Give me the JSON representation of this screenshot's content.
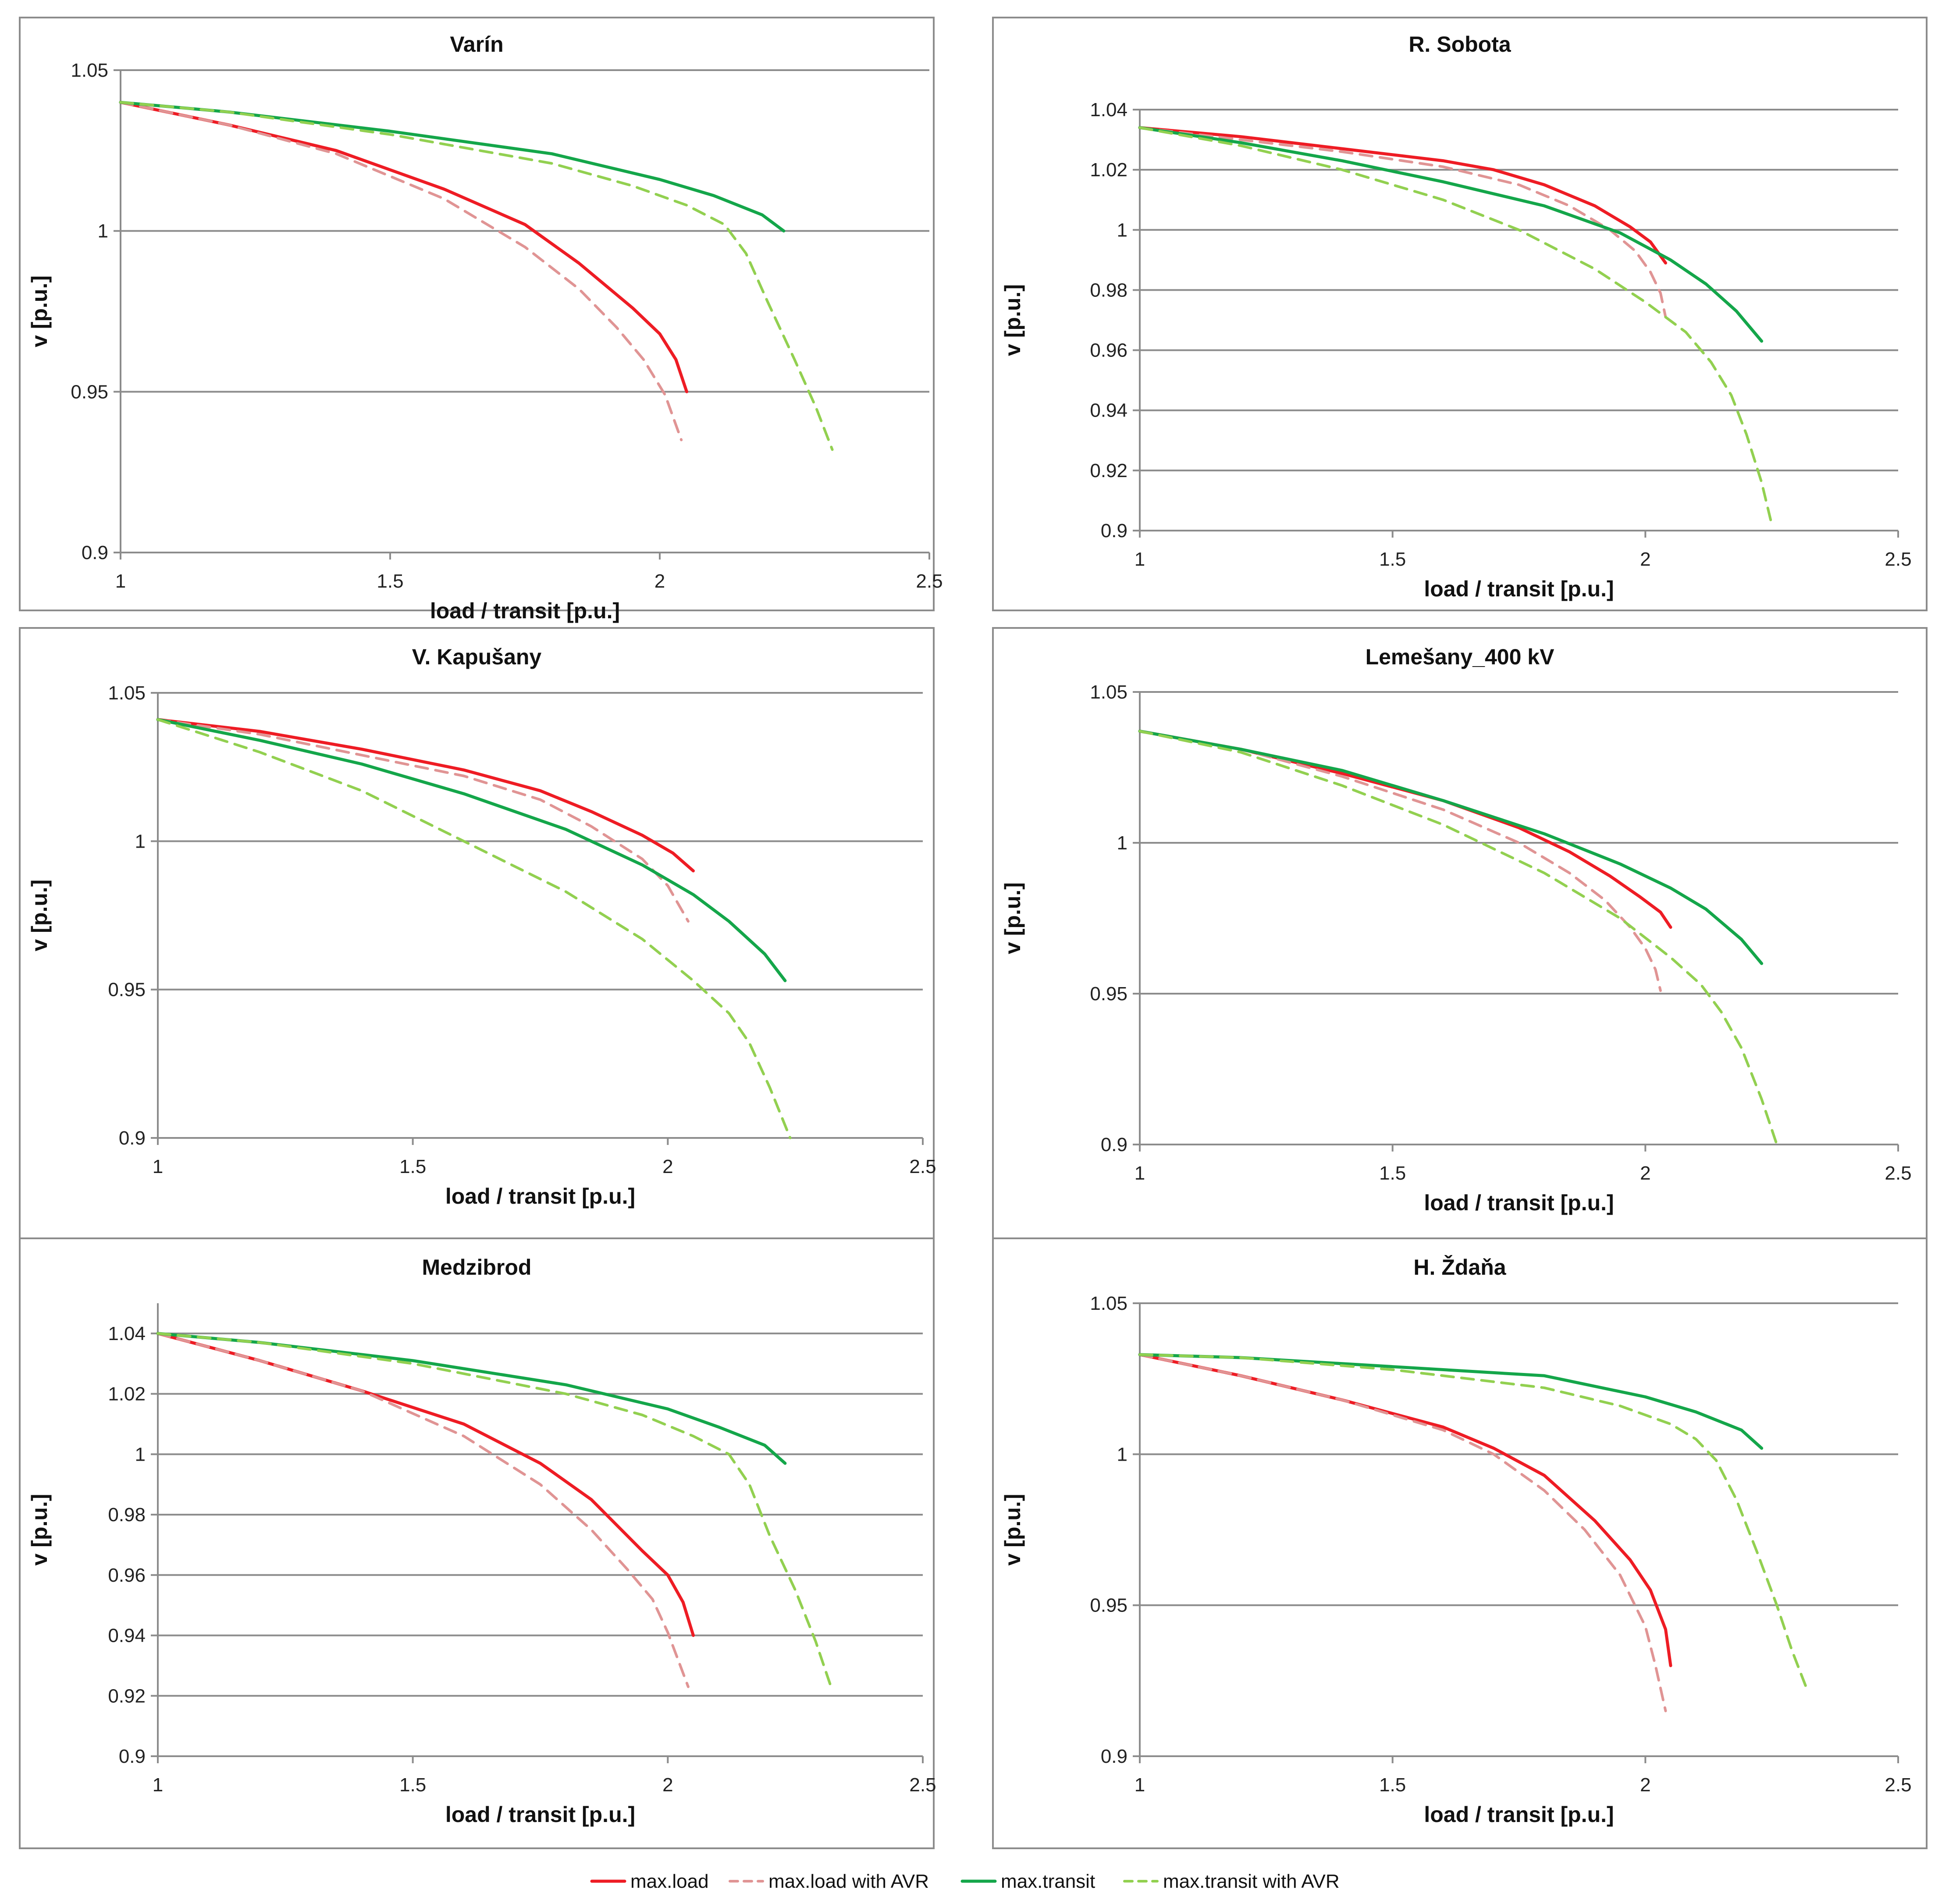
{
  "legend": [
    {
      "name": "max.load",
      "color": "#ee1c24",
      "dashed": false
    },
    {
      "name": "max.load with AVR",
      "color": "#e09494",
      "dashed": true
    },
    {
      "name": "max.transit",
      "color": "#14a64a",
      "dashed": false
    },
    {
      "name": "max.transit with AVR",
      "color": "#92d050",
      "dashed": true
    }
  ],
  "chart_data": [
    {
      "type": "line",
      "title": "Varín",
      "xlabel": "load / transit  [p.u.]",
      "ylabel": "v  [p.u.]",
      "xlim": [
        1,
        2.5
      ],
      "ylim": [
        0.9,
        1.05
      ],
      "xticks": [
        1,
        1.5,
        2,
        2.5
      ],
      "yticks": [
        0.9,
        0.95,
        1,
        1.05
      ],
      "xtick_labels": [
        "1",
        "1.5",
        "2",
        "2.5"
      ],
      "ytick_labels": [
        "0.9",
        "0.95",
        "1",
        "1.05"
      ],
      "series": [
        {
          "name": "max.load",
          "x": [
            1,
            1.2,
            1.4,
            1.6,
            1.75,
            1.85,
            1.95,
            2.0,
            2.03,
            2.05
          ],
          "y": [
            1.04,
            1.033,
            1.025,
            1.013,
            1.002,
            0.99,
            0.976,
            0.968,
            0.96,
            0.95
          ]
        },
        {
          "name": "max.load with AVR",
          "x": [
            1,
            1.2,
            1.4,
            1.6,
            1.75,
            1.85,
            1.92,
            1.97,
            2.01,
            2.04
          ],
          "y": [
            1.04,
            1.033,
            1.024,
            1.01,
            0.995,
            0.982,
            0.97,
            0.96,
            0.949,
            0.935
          ]
        },
        {
          "name": "max.transit",
          "x": [
            1,
            1.2,
            1.5,
            1.8,
            2.0,
            2.1,
            2.19,
            2.23
          ],
          "y": [
            1.04,
            1.037,
            1.031,
            1.024,
            1.016,
            1.011,
            1.005,
            1.0
          ]
        },
        {
          "name": "max.transit with AVR",
          "x": [
            1,
            1.2,
            1.5,
            1.8,
            1.95,
            2.05,
            2.12,
            2.16,
            2.2,
            2.25,
            2.29,
            2.32
          ],
          "y": [
            1.04,
            1.037,
            1.03,
            1.021,
            1.014,
            1.008,
            1.002,
            0.993,
            0.978,
            0.96,
            0.945,
            0.932
          ]
        }
      ]
    },
    {
      "type": "line",
      "title": "R. Sobota",
      "xlabel": "load / transit  [p.u.]",
      "ylabel": "v  [p.u.]",
      "xlim": [
        1,
        2.5
      ],
      "ylim": [
        0.9,
        1.04
      ],
      "xticks": [
        1,
        1.5,
        2,
        2.5
      ],
      "yticks": [
        0.9,
        0.92,
        0.94,
        0.96,
        0.98,
        1,
        1.02,
        1.04
      ],
      "xtick_labels": [
        "1",
        "1.5",
        "2",
        "2.5"
      ],
      "ytick_labels": [
        "0.9",
        "0.92",
        "0.94",
        "0.96",
        "0.98",
        "1",
        "1.02",
        "1.04"
      ],
      "series": [
        {
          "name": "max.load",
          "x": [
            1,
            1.2,
            1.4,
            1.6,
            1.7,
            1.8,
            1.9,
            1.97,
            2.01,
            2.04
          ],
          "y": [
            1.034,
            1.031,
            1.027,
            1.023,
            1.02,
            1.015,
            1.008,
            1.001,
            0.996,
            0.989
          ]
        },
        {
          "name": "max.load with AVR",
          "x": [
            1,
            1.2,
            1.4,
            1.6,
            1.75,
            1.85,
            1.93,
            1.98,
            2.01,
            2.03,
            2.04
          ],
          "y": [
            1.034,
            1.03,
            1.026,
            1.021,
            1.015,
            1.008,
            1.0,
            0.993,
            0.986,
            0.979,
            0.971
          ]
        },
        {
          "name": "max.transit",
          "x": [
            1,
            1.2,
            1.4,
            1.6,
            1.8,
            1.95,
            2.05,
            2.12,
            2.18,
            2.23
          ],
          "y": [
            1.034,
            1.029,
            1.023,
            1.016,
            1.008,
            0.999,
            0.99,
            0.982,
            0.973,
            0.963
          ]
        },
        {
          "name": "max.transit with AVR",
          "x": [
            1,
            1.2,
            1.4,
            1.6,
            1.75,
            1.9,
            2.0,
            2.08,
            2.13,
            2.17,
            2.2,
            2.23,
            2.25
          ],
          "y": [
            1.034,
            1.028,
            1.02,
            1.01,
            1.0,
            0.987,
            0.976,
            0.966,
            0.956,
            0.945,
            0.932,
            0.916,
            0.902
          ]
        }
      ]
    },
    {
      "type": "line",
      "title": "V. Kapušany",
      "xlabel": "load / transit  [p.u.]",
      "ylabel": "v  [p.u.]",
      "xlim": [
        1,
        2.5
      ],
      "ylim": [
        0.9,
        1.05
      ],
      "xticks": [
        1,
        1.5,
        2,
        2.5
      ],
      "yticks": [
        0.9,
        0.95,
        1,
        1.05
      ],
      "xtick_labels": [
        "1",
        "1.5",
        "2",
        "2.5"
      ],
      "ytick_labels": [
        "0.9",
        "0.95",
        "1",
        "1.05"
      ],
      "series": [
        {
          "name": "max.load",
          "x": [
            1,
            1.2,
            1.4,
            1.6,
            1.75,
            1.85,
            1.95,
            2.01,
            2.05
          ],
          "y": [
            1.041,
            1.037,
            1.031,
            1.024,
            1.017,
            1.01,
            1.002,
            0.996,
            0.99
          ]
        },
        {
          "name": "max.load with AVR",
          "x": [
            1,
            1.2,
            1.4,
            1.6,
            1.75,
            1.85,
            1.95,
            2.0,
            2.04
          ],
          "y": [
            1.041,
            1.036,
            1.029,
            1.022,
            1.014,
            1.005,
            0.994,
            0.985,
            0.973
          ]
        },
        {
          "name": "max.transit",
          "x": [
            1,
            1.2,
            1.4,
            1.6,
            1.8,
            1.95,
            2.05,
            2.12,
            2.19,
            2.23
          ],
          "y": [
            1.041,
            1.034,
            1.026,
            1.016,
            1.004,
            0.992,
            0.982,
            0.973,
            0.962,
            0.953
          ]
        },
        {
          "name": "max.transit with AVR",
          "x": [
            1,
            1.2,
            1.4,
            1.6,
            1.8,
            1.95,
            2.05,
            2.12,
            2.16,
            2.2,
            2.24
          ],
          "y": [
            1.041,
            1.03,
            1.017,
            1.0,
            0.983,
            0.967,
            0.953,
            0.942,
            0.932,
            0.917,
            0.9
          ]
        }
      ]
    },
    {
      "type": "line",
      "title": "Lemešany_400 kV",
      "xlabel": "load / transit  [p.u.]",
      "ylabel": "v  [p.u.]",
      "xlim": [
        1,
        2.5
      ],
      "ylim": [
        0.9,
        1.05
      ],
      "xticks": [
        1,
        1.5,
        2,
        2.5
      ],
      "yticks": [
        0.9,
        0.95,
        1,
        1.05
      ],
      "xtick_labels": [
        "1",
        "1.5",
        "2",
        "2.5"
      ],
      "ytick_labels": [
        "0.9",
        "0.95",
        "1",
        "1.05"
      ],
      "series": [
        {
          "name": "max.load",
          "x": [
            1,
            1.2,
            1.4,
            1.6,
            1.75,
            1.85,
            1.93,
            1.99,
            2.03,
            2.05
          ],
          "y": [
            1.037,
            1.031,
            1.023,
            1.014,
            1.005,
            0.997,
            0.989,
            0.982,
            0.977,
            0.972
          ]
        },
        {
          "name": "max.load with AVR",
          "x": [
            1,
            1.2,
            1.4,
            1.6,
            1.75,
            1.85,
            1.92,
            1.97,
            2.0,
            2.02,
            2.03
          ],
          "y": [
            1.037,
            1.031,
            1.022,
            1.011,
            1.0,
            0.99,
            0.981,
            0.972,
            0.965,
            0.958,
            0.951
          ]
        },
        {
          "name": "max.transit",
          "x": [
            1,
            1.2,
            1.4,
            1.6,
            1.8,
            1.95,
            2.05,
            2.12,
            2.19,
            2.23
          ],
          "y": [
            1.037,
            1.031,
            1.024,
            1.014,
            1.003,
            0.993,
            0.985,
            0.978,
            0.968,
            0.96
          ]
        },
        {
          "name": "max.transit with AVR",
          "x": [
            1,
            1.2,
            1.4,
            1.6,
            1.8,
            1.95,
            2.05,
            2.11,
            2.15,
            2.19,
            2.23,
            2.26
          ],
          "y": [
            1.037,
            1.03,
            1.019,
            1.006,
            0.99,
            0.975,
            0.962,
            0.953,
            0.944,
            0.932,
            0.915,
            0.9
          ]
        }
      ]
    },
    {
      "type": "line",
      "title": "Medzibrod",
      "xlabel": "load / transit  [p.u.]",
      "ylabel": "v  [p.u.]",
      "xlim": [
        1,
        2.5
      ],
      "ylim": [
        0.9,
        1.05
      ],
      "xticks": [
        1,
        1.5,
        2,
        2.5
      ],
      "yticks": [
        0.9,
        0.92,
        0.94,
        0.96,
        0.98,
        1,
        1.02,
        1.04
      ],
      "xtick_labels": [
        "1",
        "1.5",
        "2",
        "2.5"
      ],
      "ytick_labels": [
        "0.9",
        "0.92",
        "0.94",
        "0.96",
        "0.98",
        "1",
        "1.02",
        "1.04"
      ],
      "series": [
        {
          "name": "max.load",
          "x": [
            1,
            1.2,
            1.4,
            1.6,
            1.75,
            1.85,
            1.95,
            2.0,
            2.03,
            2.05
          ],
          "y": [
            1.04,
            1.031,
            1.021,
            1.01,
            0.997,
            0.985,
            0.968,
            0.96,
            0.951,
            0.94
          ]
        },
        {
          "name": "max.load with AVR",
          "x": [
            1,
            1.2,
            1.4,
            1.6,
            1.75,
            1.85,
            1.92,
            1.97,
            2.0,
            2.02,
            2.04
          ],
          "y": [
            1.04,
            1.031,
            1.021,
            1.006,
            0.99,
            0.975,
            0.962,
            0.952,
            0.941,
            0.932,
            0.923
          ]
        },
        {
          "name": "max.transit",
          "x": [
            1,
            1.2,
            1.5,
            1.8,
            2.0,
            2.1,
            2.19,
            2.23
          ],
          "y": [
            1.04,
            1.037,
            1.031,
            1.023,
            1.015,
            1.009,
            1.003,
            0.997
          ]
        },
        {
          "name": "max.transit with AVR",
          "x": [
            1,
            1.2,
            1.5,
            1.8,
            1.95,
            2.05,
            2.12,
            2.16,
            2.2,
            2.25,
            2.29,
            2.32
          ],
          "y": [
            1.04,
            1.037,
            1.03,
            1.02,
            1.013,
            1.006,
            1.0,
            0.99,
            0.973,
            0.955,
            0.938,
            0.923
          ]
        }
      ]
    },
    {
      "type": "line",
      "title": "H. Ždaňa",
      "xlabel": "load / transit  [p.u.]",
      "ylabel": "v  [p.u.]",
      "xlim": [
        1,
        2.5
      ],
      "ylim": [
        0.9,
        1.05
      ],
      "xticks": [
        1,
        1.5,
        2,
        2.5
      ],
      "yticks": [
        0.9,
        0.95,
        1,
        1.05
      ],
      "xtick_labels": [
        "1",
        "1.5",
        "2",
        "2.5"
      ],
      "ytick_labels": [
        "0.9",
        "0.95",
        "1",
        "1.05"
      ],
      "series": [
        {
          "name": "max.load",
          "x": [
            1,
            1.2,
            1.4,
            1.6,
            1.7,
            1.8,
            1.9,
            1.97,
            2.01,
            2.04,
            2.05
          ],
          "y": [
            1.033,
            1.026,
            1.018,
            1.009,
            1.002,
            0.993,
            0.978,
            0.965,
            0.955,
            0.942,
            0.93
          ]
        },
        {
          "name": "max.load with AVR",
          "x": [
            1,
            1.2,
            1.4,
            1.6,
            1.7,
            1.8,
            1.88,
            1.95,
            2.0,
            2.02,
            2.04
          ],
          "y": [
            1.033,
            1.026,
            1.018,
            1.008,
            1.0,
            0.988,
            0.975,
            0.96,
            0.943,
            0.93,
            0.915
          ]
        },
        {
          "name": "max.transit",
          "x": [
            1,
            1.2,
            1.5,
            1.8,
            2.0,
            2.1,
            2.19,
            2.23
          ],
          "y": [
            1.033,
            1.032,
            1.029,
            1.026,
            1.019,
            1.014,
            1.008,
            1.002
          ]
        },
        {
          "name": "max.transit with AVR",
          "x": [
            1,
            1.2,
            1.5,
            1.8,
            1.95,
            2.05,
            2.1,
            2.14,
            2.18,
            2.22,
            2.26,
            2.29,
            2.32
          ],
          "y": [
            1.033,
            1.032,
            1.028,
            1.022,
            1.016,
            1.01,
            1.005,
            0.998,
            0.985,
            0.968,
            0.95,
            0.935,
            0.922
          ]
        }
      ]
    }
  ]
}
